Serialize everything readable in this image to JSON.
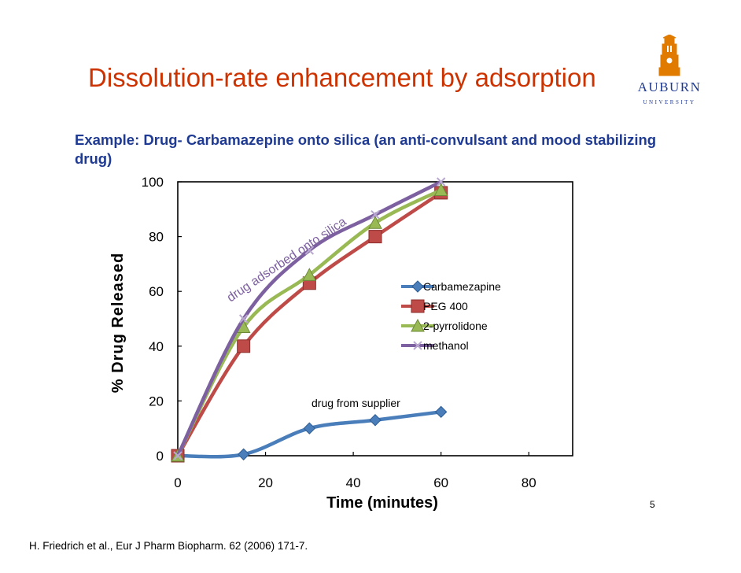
{
  "slide": {
    "title": "Dissolution-rate enhancement by adsorption",
    "example": "Example: Drug- Carbamazepine  onto silica (an anti-convulsant and mood stabilizing drug)",
    "slide_number": "5",
    "citation": "H. Friedrich et al., Eur J Pharm Biopharm. 62 (2006) 171-7.",
    "logo": {
      "name": "AUBURN",
      "subtitle": "UNIVERSITY",
      "color": "#e07b00",
      "text_color": "#1f3a93"
    },
    "title_color": "#cc3300",
    "example_color": "#1f3a93"
  },
  "chart_data": {
    "type": "line",
    "xlabel": "Time (minutes)",
    "ylabel": "% Drug Released",
    "xlim": [
      0,
      90
    ],
    "ylim": [
      0,
      100
    ],
    "xticks": [
      0,
      20,
      40,
      60,
      80
    ],
    "yticks": [
      0,
      20,
      40,
      60,
      80,
      100
    ],
    "legend_position": "right",
    "series": [
      {
        "name": "Carbamezapine",
        "color": "#4a7ebb",
        "marker": "diamond",
        "x": [
          0,
          15,
          30,
          45,
          60
        ],
        "y": [
          0,
          0.5,
          10,
          13,
          16
        ]
      },
      {
        "name": "PEG 400",
        "color": "#be4b48",
        "marker": "square",
        "x": [
          0,
          15,
          30,
          45,
          60
        ],
        "y": [
          0,
          40,
          63,
          80,
          96
        ]
      },
      {
        "name": "2-pyrrolidone",
        "color": "#98b954",
        "marker": "triangle",
        "x": [
          0,
          15,
          30,
          45,
          60
        ],
        "y": [
          0,
          47,
          66,
          85,
          97
        ]
      },
      {
        "name": "methanol",
        "color": "#7d60a0",
        "marker": "cross",
        "x": [
          0,
          15,
          30,
          45,
          60
        ],
        "y": [
          0,
          50,
          75,
          88,
          100
        ]
      }
    ],
    "annotations": [
      {
        "text": "drug adsorbed onto silica"
      },
      {
        "text": "drug from supplier"
      }
    ]
  }
}
